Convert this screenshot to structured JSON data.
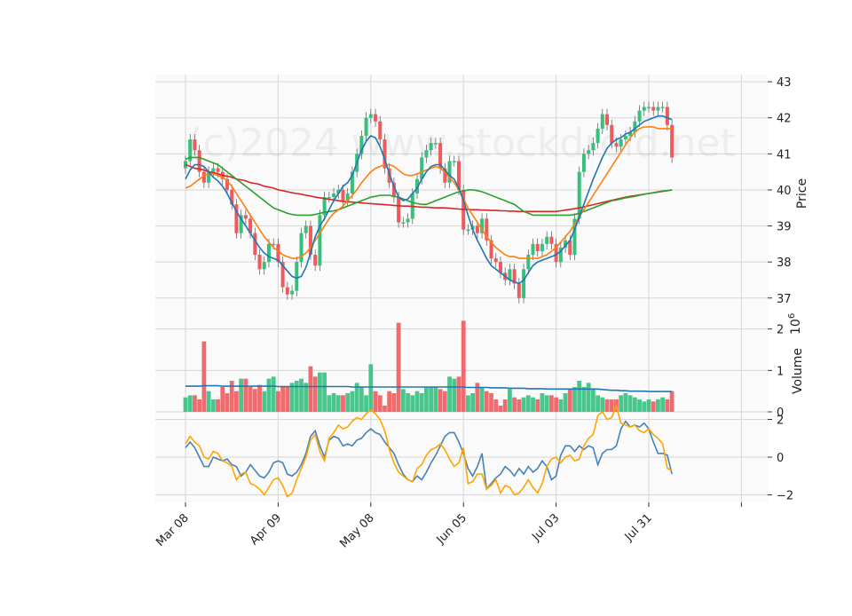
{
  "watermark": "(c)2024 www.stockdroid.net",
  "chart_data": [
    {
      "type": "candlestick",
      "panel": "price",
      "ylabel": "Price",
      "ylim": [
        36.6,
        43.2
      ],
      "yticks": [
        37,
        38,
        39,
        40,
        41,
        42,
        43
      ],
      "xticks": [
        {
          "index": 0,
          "label": "Mar 08"
        },
        {
          "index": 20,
          "label": "Apr 09"
        },
        {
          "index": 40,
          "label": "May 08"
        },
        {
          "index": 60,
          "label": "Jun 05"
        },
        {
          "index": 80,
          "label": "Jul 03"
        },
        {
          "index": 100,
          "label": "Jul 31"
        },
        {
          "index": 120,
          "label": ""
        }
      ],
      "grid": true,
      "colors": {
        "up": "#35c07e",
        "down": "#f05a5d",
        "ma_fast": "#1f77b4",
        "ma_mid": "#ff7f0e",
        "ma_slow": "#2ca02c",
        "ma_long": "#d62728"
      },
      "closes": [
        40.8,
        41.4,
        41.1,
        40.5,
        40.2,
        40.5,
        40.6,
        40.5,
        40.3,
        40.0,
        39.6,
        38.8,
        39.3,
        39.2,
        38.8,
        38.2,
        37.8,
        38.0,
        38.5,
        38.5,
        38.0,
        37.3,
        37.1,
        37.2,
        38.0,
        38.8,
        39.0,
        38.2,
        37.9,
        39.3,
        39.8,
        39.8,
        39.9,
        40.0,
        39.7,
        39.9,
        40.5,
        41.0,
        41.5,
        42.0,
        42.1,
        41.9,
        41.4,
        40.6,
        40.2,
        39.8,
        39.1,
        39.1,
        39.2,
        39.9,
        40.3,
        40.9,
        41.1,
        41.3,
        41.3,
        40.6,
        40.2,
        40.8,
        40.8,
        40.0,
        38.9,
        38.9,
        39.0,
        38.8,
        39.2,
        38.6,
        38.1,
        38.0,
        37.7,
        37.5,
        37.8,
        37.4,
        37.0,
        37.8,
        38.2,
        38.5,
        38.3,
        38.5,
        38.7,
        38.5,
        38.0,
        38.4,
        38.6,
        38.2,
        39.2,
        40.5,
        41.0,
        41.1,
        41.3,
        41.7,
        42.1,
        41.8,
        41.3,
        41.2,
        41.4,
        41.5,
        41.6,
        41.9,
        42.2,
        42.3,
        42.3,
        42.2,
        42.3,
        42.3,
        41.8,
        40.9
      ],
      "volumes": [
        0.35,
        0.4,
        0.4,
        0.3,
        1.7,
        0.5,
        0.3,
        0.3,
        0.6,
        0.45,
        0.75,
        0.5,
        0.8,
        0.8,
        0.6,
        0.55,
        0.65,
        0.5,
        0.8,
        0.85,
        0.5,
        0.6,
        0.6,
        0.7,
        0.75,
        0.8,
        0.7,
        1.1,
        0.85,
        0.95,
        0.95,
        0.4,
        0.45,
        0.4,
        0.4,
        0.45,
        0.5,
        0.7,
        0.6,
        0.4,
        1.15,
        0.5,
        0.4,
        0.15,
        0.5,
        0.45,
        2.15,
        0.55,
        0.45,
        0.4,
        0.5,
        0.45,
        0.6,
        0.6,
        0.6,
        0.55,
        0.5,
        0.85,
        0.8,
        0.85,
        2.2,
        0.4,
        0.45,
        0.7,
        0.6,
        0.5,
        0.45,
        0.3,
        0.15,
        0.3,
        0.55,
        0.35,
        0.3,
        0.35,
        0.4,
        0.35,
        0.3,
        0.45,
        0.4,
        0.4,
        0.35,
        0.3,
        0.45,
        0.55,
        0.6,
        0.75,
        0.6,
        0.7,
        0.55,
        0.4,
        0.35,
        0.3,
        0.3,
        0.3,
        0.4,
        0.45,
        0.4,
        0.35,
        0.3,
        0.25,
        0.3,
        0.25,
        0.3,
        0.35,
        0.3,
        0.5
      ],
      "ma_fast": [
        40.3,
        40.55,
        40.7,
        40.7,
        40.65,
        40.5,
        40.35,
        40.25,
        40.1,
        39.9,
        39.65,
        39.4,
        39.2,
        39.0,
        38.8,
        38.6,
        38.4,
        38.25,
        38.15,
        38.1,
        38.05,
        37.9,
        37.75,
        37.6,
        37.55,
        37.6,
        37.85,
        38.25,
        38.7,
        39.0,
        39.2,
        39.45,
        39.7,
        39.9,
        40.1,
        40.2,
        40.4,
        40.75,
        41.1,
        41.35,
        41.5,
        41.45,
        41.2,
        40.85,
        40.45,
        40.1,
        39.8,
        39.7,
        39.75,
        39.9,
        40.05,
        40.3,
        40.5,
        40.65,
        40.7,
        40.7,
        40.55,
        40.4,
        40.3,
        40.05,
        39.7,
        39.3,
        38.9,
        38.6,
        38.35,
        38.1,
        37.9,
        37.8,
        37.7,
        37.6,
        37.5,
        37.45,
        37.4,
        37.5,
        37.7,
        37.9,
        38.0,
        38.05,
        38.1,
        38.15,
        38.2,
        38.3,
        38.45,
        38.6,
        38.9,
        39.25,
        39.6,
        39.95,
        40.3,
        40.6,
        40.9,
        41.15,
        41.3,
        41.4,
        41.45,
        41.55,
        41.6,
        41.7,
        41.8,
        41.9,
        41.95,
        42.0,
        42.05,
        42.05,
        42.0,
        41.95
      ],
      "ma_mid": [
        40.05,
        40.1,
        40.2,
        40.3,
        40.4,
        40.45,
        40.45,
        40.4,
        40.35,
        40.25,
        40.1,
        39.9,
        39.7,
        39.5,
        39.3,
        39.1,
        38.9,
        38.7,
        38.55,
        38.4,
        38.3,
        38.2,
        38.15,
        38.1,
        38.1,
        38.15,
        38.25,
        38.4,
        38.6,
        38.8,
        39.0,
        39.2,
        39.35,
        39.45,
        39.55,
        39.7,
        39.85,
        40.0,
        40.2,
        40.35,
        40.5,
        40.6,
        40.65,
        40.7,
        40.7,
        40.65,
        40.55,
        40.45,
        40.4,
        40.4,
        40.45,
        40.5,
        40.55,
        40.6,
        40.65,
        40.6,
        40.5,
        40.35,
        40.2,
        40.0,
        39.75,
        39.5,
        39.3,
        39.1,
        38.9,
        38.7,
        38.55,
        38.4,
        38.3,
        38.2,
        38.15,
        38.15,
        38.1,
        38.1,
        38.1,
        38.1,
        38.1,
        38.15,
        38.2,
        38.3,
        38.4,
        38.55,
        38.7,
        38.85,
        39.05,
        39.25,
        39.45,
        39.65,
        39.85,
        40.05,
        40.25,
        40.45,
        40.65,
        40.85,
        41.05,
        41.25,
        41.45,
        41.6,
        41.7,
        41.75,
        41.75,
        41.75,
        41.7,
        41.7,
        41.7,
        41.7
      ],
      "ma_slow": [
        40.85,
        40.9,
        40.9,
        40.9,
        40.85,
        40.8,
        40.75,
        40.7,
        40.6,
        40.5,
        40.4,
        40.3,
        40.2,
        40.1,
        40.0,
        39.9,
        39.8,
        39.7,
        39.6,
        39.5,
        39.45,
        39.4,
        39.35,
        39.32,
        39.3,
        39.3,
        39.3,
        39.3,
        39.32,
        39.35,
        39.38,
        39.4,
        39.42,
        39.45,
        39.5,
        39.55,
        39.6,
        39.65,
        39.7,
        39.75,
        39.8,
        39.82,
        39.85,
        39.85,
        39.85,
        39.82,
        39.8,
        39.75,
        39.7,
        39.65,
        39.62,
        39.6,
        39.6,
        39.65,
        39.7,
        39.75,
        39.8,
        39.85,
        39.9,
        39.95,
        39.97,
        40.0,
        40.0,
        39.98,
        39.95,
        39.9,
        39.85,
        39.8,
        39.75,
        39.7,
        39.65,
        39.6,
        39.5,
        39.4,
        39.35,
        39.3,
        39.3,
        39.3,
        39.3,
        39.3,
        39.3,
        39.3,
        39.3,
        39.3,
        39.32,
        39.35,
        39.4,
        39.45,
        39.5,
        39.55,
        39.6,
        39.65,
        39.7,
        39.72,
        39.75,
        39.78,
        39.8,
        39.82,
        39.85,
        39.88,
        39.9,
        39.92,
        39.95,
        39.97,
        39.98,
        40.0
      ],
      "ma_long": [
        40.7,
        40.65,
        40.6,
        40.58,
        40.55,
        40.5,
        40.48,
        40.45,
        40.4,
        40.38,
        40.35,
        40.3,
        40.28,
        40.25,
        40.2,
        40.18,
        40.15,
        40.1,
        40.08,
        40.05,
        40.0,
        39.98,
        39.95,
        39.92,
        39.9,
        39.88,
        39.85,
        39.83,
        39.8,
        39.78,
        39.76,
        39.74,
        39.72,
        39.7,
        39.68,
        39.67,
        39.66,
        39.65,
        39.64,
        39.63,
        39.62,
        39.61,
        39.6,
        39.59,
        39.58,
        39.57,
        39.56,
        39.55,
        39.55,
        39.54,
        39.53,
        39.52,
        39.52,
        39.51,
        39.5,
        39.5,
        39.5,
        39.49,
        39.48,
        39.47,
        39.46,
        39.46,
        39.45,
        39.45,
        39.44,
        39.44,
        39.43,
        39.43,
        39.42,
        39.42,
        39.41,
        39.41,
        39.4,
        39.4,
        39.4,
        39.4,
        39.4,
        39.4,
        39.4,
        39.4,
        39.4,
        39.42,
        39.44,
        39.46,
        39.48,
        39.5,
        39.53,
        39.56,
        39.59,
        39.62,
        39.65,
        39.68,
        39.71,
        39.74,
        39.77,
        39.8,
        39.82,
        39.84,
        39.86,
        39.88,
        39.9,
        39.92,
        39.94,
        39.96,
        39.98,
        40.0
      ]
    },
    {
      "type": "bar",
      "panel": "volume",
      "ylabel": "Volume",
      "scale_label": "10^6",
      "ylim": [
        0,
        2.4
      ],
      "yticks": [
        0,
        1,
        2
      ],
      "grid": true,
      "avg_line": [
        0.62,
        0.62,
        0.62,
        0.62,
        0.63,
        0.63,
        0.63,
        0.63,
        0.62,
        0.62,
        0.62,
        0.62,
        0.62,
        0.62,
        0.62,
        0.62,
        0.62,
        0.62,
        0.62,
        0.62,
        0.61,
        0.61,
        0.61,
        0.61,
        0.61,
        0.61,
        0.61,
        0.61,
        0.61,
        0.61,
        0.61,
        0.61,
        0.61,
        0.61,
        0.61,
        0.61,
        0.6,
        0.6,
        0.6,
        0.6,
        0.6,
        0.6,
        0.6,
        0.6,
        0.6,
        0.6,
        0.6,
        0.6,
        0.6,
        0.6,
        0.6,
        0.6,
        0.6,
        0.6,
        0.6,
        0.6,
        0.6,
        0.6,
        0.6,
        0.6,
        0.6,
        0.59,
        0.59,
        0.59,
        0.59,
        0.59,
        0.58,
        0.58,
        0.58,
        0.58,
        0.57,
        0.57,
        0.57,
        0.57,
        0.56,
        0.56,
        0.56,
        0.56,
        0.55,
        0.55,
        0.55,
        0.55,
        0.55,
        0.55,
        0.55,
        0.55,
        0.55,
        0.55,
        0.55,
        0.55,
        0.54,
        0.53,
        0.52,
        0.52,
        0.51,
        0.51,
        0.5,
        0.5,
        0.5,
        0.5,
        0.49,
        0.49,
        0.49,
        0.49,
        0.49,
        0.49
      ]
    },
    {
      "type": "line",
      "panel": "oscillator",
      "ylim": [
        -2.4,
        2.4
      ],
      "yticks": [
        -2,
        0,
        2
      ],
      "grid": true,
      "series": [
        {
          "color": "#4682b4",
          "values": [
            0.5,
            0.8,
            0.5,
            0.0,
            -0.5,
            -0.5,
            0.0,
            -0.1,
            -0.2,
            -0.1,
            -0.4,
            -0.5,
            -1.0,
            -0.8,
            -0.4,
            -0.7,
            -1.0,
            -1.1,
            -0.8,
            -0.3,
            -0.2,
            -0.3,
            -0.9,
            -1.0,
            -0.8,
            -0.4,
            0.2,
            1.1,
            1.4,
            0.6,
            0.0,
            0.9,
            1.1,
            1.0,
            0.6,
            0.7,
            0.6,
            0.9,
            1.0,
            1.3,
            1.5,
            1.3,
            1.2,
            0.8,
            0.5,
            0.2,
            -0.4,
            -0.9,
            -1.2,
            -1.3,
            -1.0,
            -1.2,
            -0.8,
            -0.3,
            0.1,
            0.6,
            1.1,
            1.3,
            1.3,
            0.8,
            0.2,
            -0.6,
            -1.0,
            -0.5,
            0.2,
            -1.7,
            -1.4,
            -1.1,
            -0.9,
            -0.5,
            -0.7,
            -1.0,
            -0.6,
            -0.9,
            -0.5,
            -0.8,
            -0.6,
            -0.2,
            -0.5,
            -1.2,
            -1.0,
            0.1,
            0.6,
            0.6,
            0.3,
            0.6,
            0.4,
            0.6,
            0.5,
            -0.4,
            0.2,
            0.4,
            0.4,
            0.6,
            1.5,
            1.9,
            1.6,
            1.7,
            1.6,
            1.8,
            1.5,
            0.8,
            0.2,
            0.2,
            0.1,
            -0.9
          ]
        },
        {
          "color": "#ffa500",
          "values": [
            0.7,
            1.1,
            0.8,
            0.6,
            0.0,
            -0.1,
            0.3,
            0.2,
            -0.2,
            -0.3,
            -0.5,
            -1.2,
            -0.9,
            -0.8,
            -1.4,
            -1.5,
            -1.7,
            -2.0,
            -1.6,
            -1.2,
            -1.1,
            -1.5,
            -2.1,
            -1.9,
            -1.2,
            -0.6,
            0.0,
            0.9,
            1.2,
            0.3,
            -0.2,
            1.0,
            1.3,
            1.7,
            1.5,
            1.6,
            1.9,
            2.1,
            2.0,
            2.3,
            2.5,
            2.3,
            2.0,
            1.4,
            0.4,
            -0.3,
            -0.8,
            -1.0,
            -1.2,
            -1.3,
            -0.6,
            -0.4,
            0.1,
            0.4,
            0.5,
            0.7,
            0.4,
            -0.1,
            -0.5,
            -0.3,
            0.5,
            -1.4,
            -1.3,
            -0.9,
            -0.9,
            -1.7,
            -1.5,
            -1.2,
            -1.9,
            -1.5,
            -1.6,
            -2.0,
            -1.9,
            -1.6,
            -1.2,
            -1.6,
            -1.9,
            -1.4,
            -0.5,
            -0.1,
            0.0,
            -0.3,
            0.0,
            0.1,
            -0.2,
            -0.1,
            0.6,
            1.0,
            1.2,
            2.2,
            2.4,
            2.0,
            2.1,
            2.7,
            1.8,
            1.7,
            1.6,
            1.7,
            1.4,
            1.3,
            1.5,
            1.2,
            1.0,
            0.7,
            -0.6,
            -0.7
          ]
        }
      ]
    }
  ]
}
